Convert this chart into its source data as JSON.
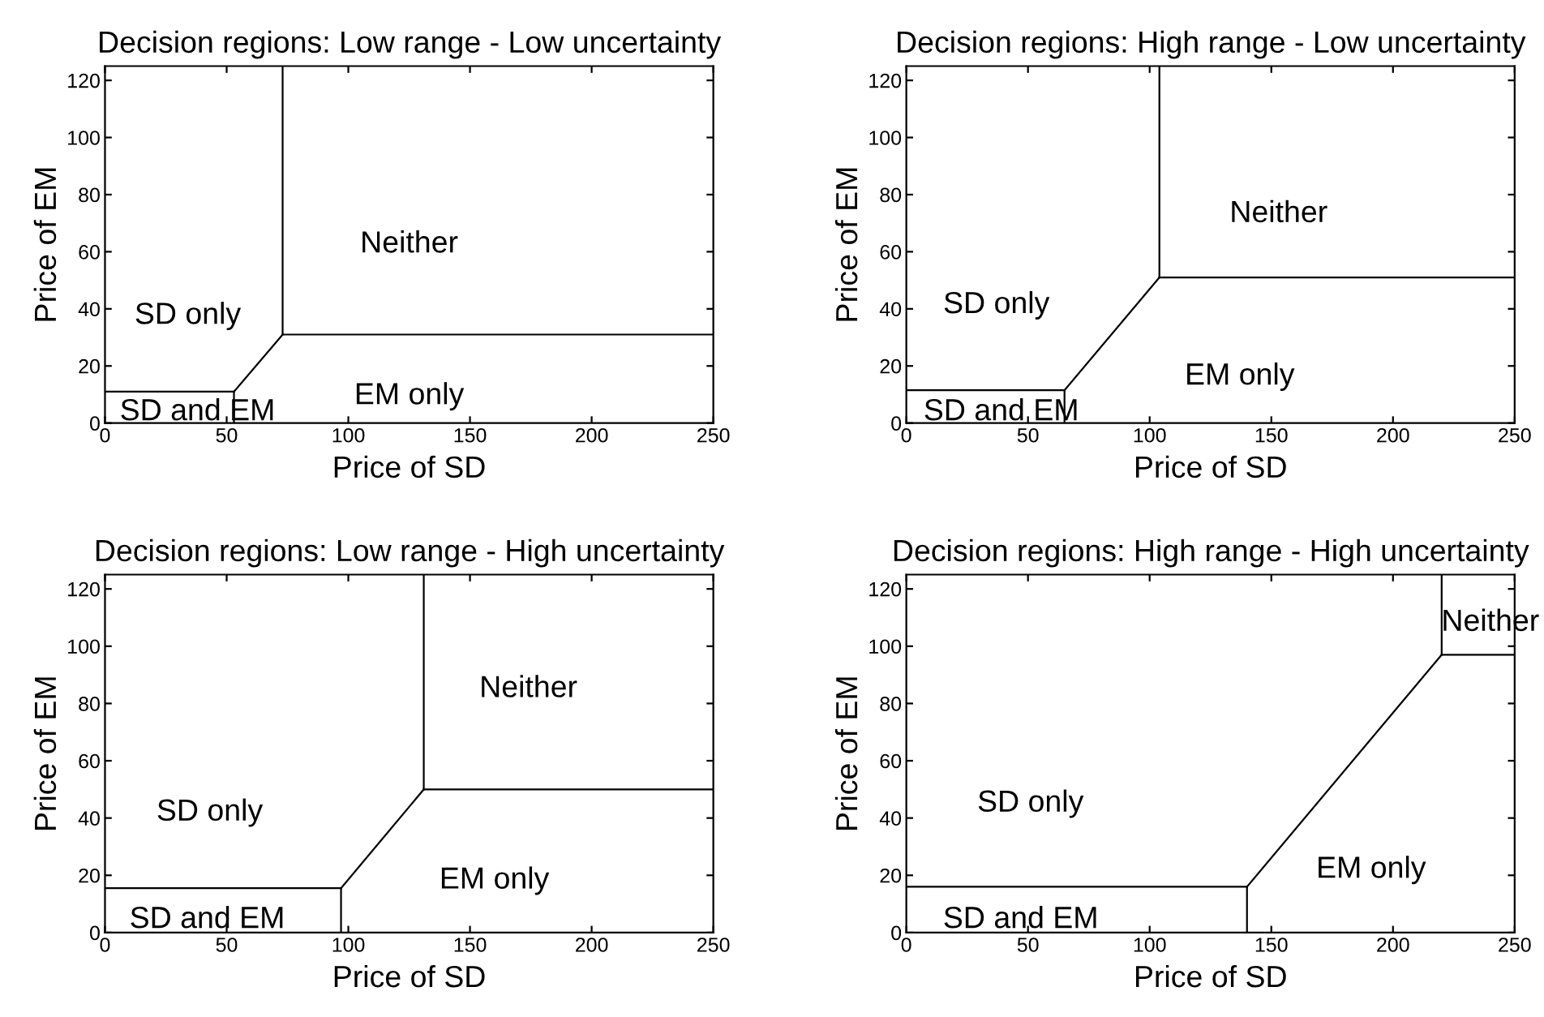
{
  "chart_data": [
    {
      "type": "line",
      "title": "Decision regions: Low range - Low uncertainty",
      "xlabel": "Price of SD",
      "ylabel": "Price of EM",
      "xlim": [
        0,
        250
      ],
      "ylim": [
        0,
        125
      ],
      "xticks": [
        0,
        50,
        100,
        150,
        200,
        250
      ],
      "yticks": [
        0,
        20,
        40,
        60,
        80,
        100,
        120
      ],
      "grid": false,
      "legend": false,
      "series": [
        {
          "color": "#000000",
          "x": [
            0,
            53
          ],
          "values": [
            11,
            11
          ]
        },
        {
          "color": "#000000",
          "x": [
            53,
            53
          ],
          "values": [
            11,
            0
          ]
        },
        {
          "color": "#000000",
          "x": [
            53,
            73
          ],
          "values": [
            11,
            31
          ]
        },
        {
          "color": "#000000",
          "x": [
            73,
            73
          ],
          "values": [
            31,
            125
          ]
        },
        {
          "color": "#000000",
          "x": [
            73,
            250
          ],
          "values": [
            31,
            31
          ]
        }
      ],
      "annotations": [
        "SD only",
        "Neither",
        "EM only",
        "SD and EM"
      ]
    },
    {
      "type": "line",
      "title": "Decision regions: High range - Low uncertainty",
      "xlabel": "Price of SD",
      "ylabel": "Price of EM",
      "xlim": [
        0,
        250
      ],
      "ylim": [
        0,
        125
      ],
      "xticks": [
        0,
        50,
        100,
        150,
        200,
        250
      ],
      "yticks": [
        0,
        20,
        40,
        60,
        80,
        100,
        120
      ],
      "grid": false,
      "legend": false,
      "series": [
        {
          "color": "#000000",
          "x": [
            0,
            65
          ],
          "values": [
            11.5,
            11.5
          ]
        },
        {
          "color": "#000000",
          "x": [
            65,
            65
          ],
          "values": [
            11.5,
            0
          ]
        },
        {
          "color": "#000000",
          "x": [
            65,
            104
          ],
          "values": [
            11.5,
            51
          ]
        },
        {
          "color": "#000000",
          "x": [
            104,
            104
          ],
          "values": [
            51,
            125
          ]
        },
        {
          "color": "#000000",
          "x": [
            104,
            250
          ],
          "values": [
            51,
            51
          ]
        }
      ],
      "annotations": [
        "SD only",
        "Neither",
        "EM only",
        "SD and EM"
      ]
    },
    {
      "type": "line",
      "title": "Decision regions: Low range - High uncertainty",
      "xlabel": "Price of SD",
      "ylabel": "Price of EM",
      "xlim": [
        0,
        250
      ],
      "ylim": [
        0,
        125
      ],
      "xticks": [
        0,
        50,
        100,
        150,
        200,
        250
      ],
      "yticks": [
        0,
        20,
        40,
        60,
        80,
        100,
        120
      ],
      "grid": false,
      "legend": false,
      "series": [
        {
          "color": "#000000",
          "x": [
            0,
            97
          ],
          "values": [
            15.5,
            15.5
          ]
        },
        {
          "color": "#000000",
          "x": [
            97,
            97
          ],
          "values": [
            15.5,
            0
          ]
        },
        {
          "color": "#000000",
          "x": [
            97,
            131
          ],
          "values": [
            15.5,
            50
          ]
        },
        {
          "color": "#000000",
          "x": [
            131,
            131
          ],
          "values": [
            50,
            125
          ]
        },
        {
          "color": "#000000",
          "x": [
            131,
            250
          ],
          "values": [
            50,
            50
          ]
        }
      ],
      "annotations": [
        "SD only",
        "Neither",
        "EM only",
        "SD and EM"
      ]
    },
    {
      "type": "line",
      "title": "Decision regions: High range - High uncertainty",
      "xlabel": "Price of SD",
      "ylabel": "Price of EM",
      "xlim": [
        0,
        250
      ],
      "ylim": [
        0,
        125
      ],
      "xticks": [
        0,
        50,
        100,
        150,
        200,
        250
      ],
      "yticks": [
        0,
        20,
        40,
        60,
        80,
        100,
        120
      ],
      "grid": false,
      "legend": false,
      "series": [
        {
          "color": "#000000",
          "x": [
            0,
            140
          ],
          "values": [
            16,
            16
          ]
        },
        {
          "color": "#000000",
          "x": [
            140,
            140
          ],
          "values": [
            16,
            0
          ]
        },
        {
          "color": "#000000",
          "x": [
            140,
            220
          ],
          "values": [
            16,
            97
          ]
        },
        {
          "color": "#000000",
          "x": [
            220,
            220
          ],
          "values": [
            97,
            125
          ]
        },
        {
          "color": "#000000",
          "x": [
            220,
            250
          ],
          "values": [
            97,
            97
          ]
        }
      ],
      "annotations": [
        "SD only",
        "Neither",
        "EM only",
        "SD and EM"
      ]
    }
  ]
}
